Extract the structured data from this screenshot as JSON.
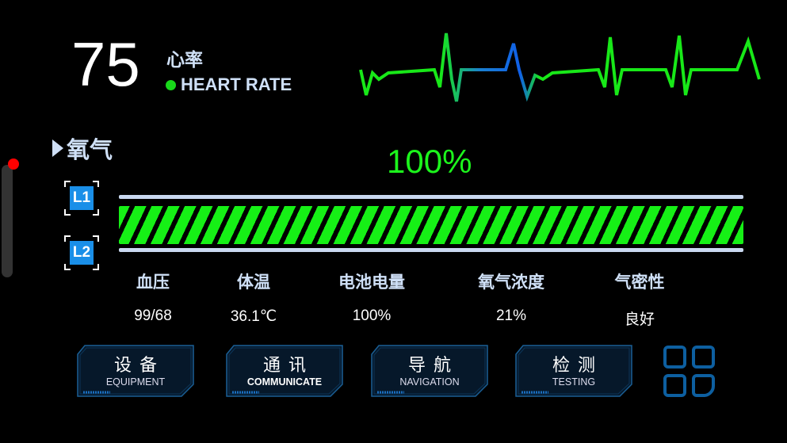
{
  "heart_rate": {
    "value": "75",
    "label_cn": "心率",
    "label_en": "HEART RATE",
    "indicator_color": "#18d81a"
  },
  "oxygen": {
    "title": "氧气",
    "percent": "100%",
    "fill_percent": 100,
    "levels": [
      "L1",
      "L2"
    ],
    "bar_color": "#16f016"
  },
  "stats": [
    {
      "label": "血压",
      "value": "99/68"
    },
    {
      "label": "体温",
      "value": "36.1℃"
    },
    {
      "label": "电池电量",
      "value": "100%"
    },
    {
      "label": "氧气浓度",
      "value": "21%"
    },
    {
      "label": "气密性",
      "value": "良好"
    }
  ],
  "nav": [
    {
      "cn": "设备",
      "en": "EQUIPMENT"
    },
    {
      "cn": "通讯",
      "en": "COMMUNICATE"
    },
    {
      "cn": "导航",
      "en": "NAVIGATION"
    },
    {
      "cn": "检测",
      "en": "TESTING"
    }
  ],
  "icons": {
    "menu": "grid-icon"
  }
}
